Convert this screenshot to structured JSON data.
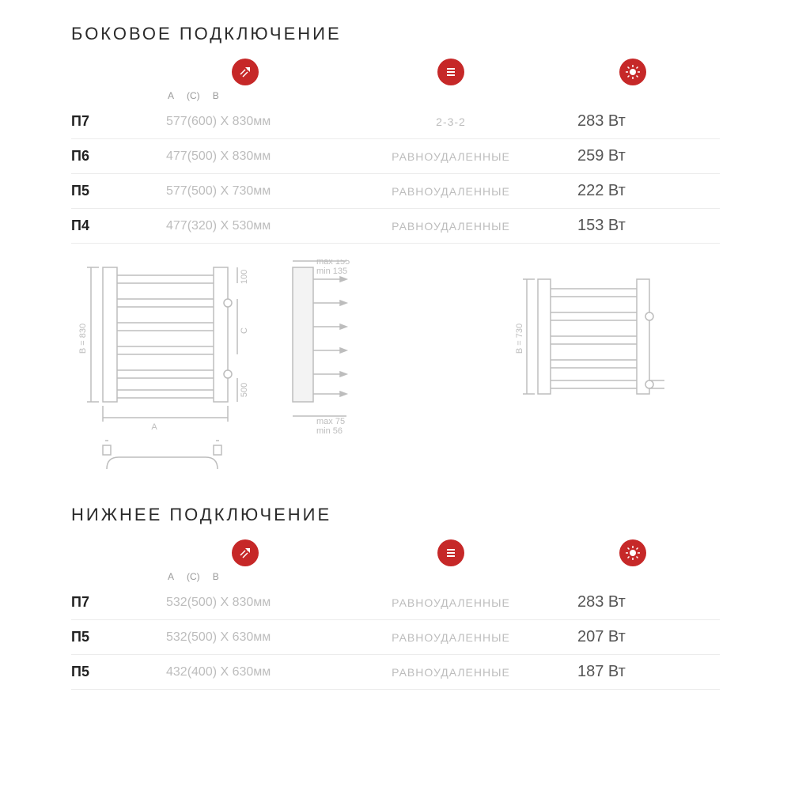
{
  "section1": {
    "title": "БОКОВОЕ ПОДКЛЮЧЕНИЕ",
    "header": {
      "a": "A",
      "c": "(C)",
      "b": "B"
    },
    "rows": [
      {
        "model": "П7",
        "dims": "577(600) X 830мм",
        "group": "2-3-2",
        "power": "283 Вт"
      },
      {
        "model": "П6",
        "dims": "477(500) X 830мм",
        "group": "РАВНОУДАЛЕННЫЕ",
        "power": "259 Вт"
      },
      {
        "model": "П5",
        "dims": "577(500) X 730мм",
        "group": "РАВНОУДАЛЕННЫЕ",
        "power": "222 Вт"
      },
      {
        "model": "П4",
        "dims": "477(320) X 530мм",
        "group": "РАВНОУДАЛЕННЫЕ",
        "power": "153 Вт"
      }
    ]
  },
  "diagram": {
    "top_max": "max 155",
    "top_min": "min 135",
    "bot_max": "max 75",
    "bot_min": "min 56",
    "top_gap": "100",
    "c_label": "C",
    "bot_gap": "500",
    "height_left": "B = 830",
    "height_right": "B = 730",
    "width_label": "A"
  },
  "section2": {
    "title": "НИЖНЕЕ ПОДКЛЮЧЕНИЕ",
    "header": {
      "a": "A",
      "c": "(C)",
      "b": "B"
    },
    "rows": [
      {
        "model": "П7",
        "dims": "532(500) X 830мм",
        "group": "РАВНОУДАЛЕННЫЕ",
        "power": "283 Вт"
      },
      {
        "model": "П5",
        "dims": "532(500) X 630мм",
        "group": "РАВНОУДАЛЕННЫЕ",
        "power": "207 Вт"
      },
      {
        "model": "П5",
        "dims": "432(400) X 630мм",
        "group": "РАВНОУДАЛЕННЫЕ",
        "power": "187 Вт"
      }
    ]
  },
  "colors": {
    "accent": "#c62828",
    "text_muted": "#bdbdbd",
    "divider": "#ececec"
  }
}
